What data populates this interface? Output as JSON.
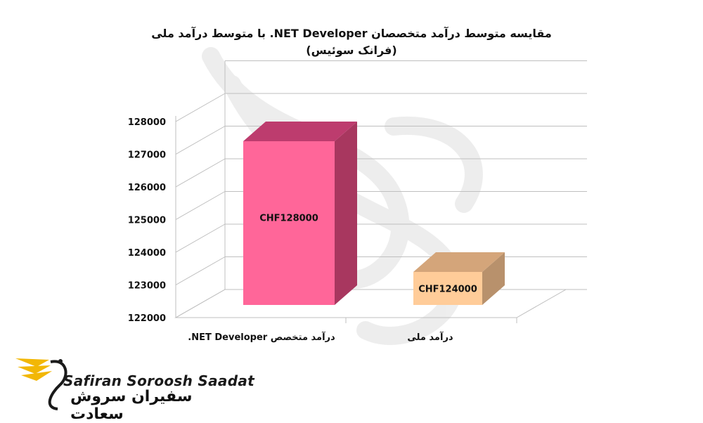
{
  "chart_data": {
    "type": "bar",
    "title": "مقایسه متوسط درآمد متخصصان NET Developer. با متوسط درآمد ملی",
    "subtitle": "(فرانک سوئیس)",
    "categories": [
      "درآمد متخصص NET Developer.",
      "درآمد ملی"
    ],
    "values": [
      128000,
      124000
    ],
    "data_labels": [
      "CHF128000",
      "CHF124000"
    ],
    "y_ticks": [
      "122000",
      "123000",
      "124000",
      "125000",
      "126000",
      "127000",
      "128000"
    ],
    "ylim": [
      122000,
      128500
    ],
    "grid": true,
    "legend": "none",
    "colors": {
      "bar1_front": "#ff6699",
      "bar1_top": "#bd3c6e",
      "bar1_side": "#a8375f",
      "bar2_front": "#ffcc99",
      "bar2_top": "#d4a57a",
      "bar2_side": "#b8916c"
    }
  },
  "logo": {
    "text_en": "Safiran Soroosh Saadat",
    "text_fa": "سفیران سروش سعادت",
    "colors": {
      "wing": "#f2b705",
      "dark": "#1a1a1a"
    }
  }
}
